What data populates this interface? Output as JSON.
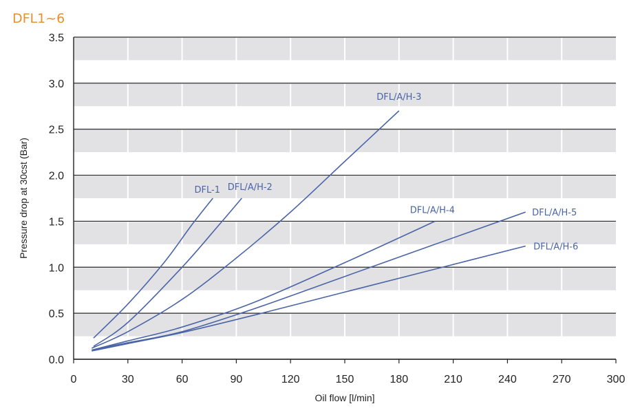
{
  "corner_title": "DFL1~6",
  "chart_data": {
    "type": "line",
    "title": "",
    "xlabel": "Oil flow [l/min]",
    "ylabel": "Pressure drop at 30cst (Bar)",
    "xlim": [
      0,
      300
    ],
    "ylim": [
      0,
      3.5
    ],
    "x_ticks": [
      "0",
      "30",
      "60",
      "90",
      "120",
      "150",
      "180",
      "210",
      "240",
      "270",
      "300"
    ],
    "y_ticks": [
      "0.0",
      "0.5",
      "1.0",
      "1.5",
      "2.0",
      "2.5",
      "3.0",
      "3.5"
    ],
    "grid": "horizontal lines with alternating gray bands",
    "line_color": "#4a64a8",
    "band_color": "#e2e2e4",
    "series": [
      {
        "name": "DFL-1",
        "x": [
          11,
          30,
          50,
          65,
          77
        ],
        "y": [
          0.23,
          0.6,
          1.05,
          1.45,
          1.75
        ]
      },
      {
        "name": "DFL/A/H-2",
        "x": [
          11,
          30,
          60,
          80,
          93
        ],
        "y": [
          0.14,
          0.4,
          1.0,
          1.45,
          1.75
        ]
      },
      {
        "name": "DFL/A/H-3",
        "x": [
          10,
          30,
          60,
          90,
          120,
          150,
          180
        ],
        "y": [
          0.12,
          0.3,
          0.65,
          1.1,
          1.6,
          2.15,
          2.7
        ]
      },
      {
        "name": "DFL/A/H-4",
        "x": [
          10,
          30,
          60,
          100,
          150,
          200
        ],
        "y": [
          0.1,
          0.2,
          0.35,
          0.62,
          1.05,
          1.5
        ]
      },
      {
        "name": "DFL/A/H-5",
        "x": [
          10,
          30,
          60,
          100,
          150,
          200,
          250
        ],
        "y": [
          0.1,
          0.18,
          0.3,
          0.55,
          0.9,
          1.25,
          1.6
        ]
      },
      {
        "name": "DFL/A/H-6",
        "x": [
          10,
          30,
          60,
          100,
          150,
          200,
          250
        ],
        "y": [
          0.09,
          0.17,
          0.29,
          0.48,
          0.73,
          0.98,
          1.23
        ]
      }
    ]
  }
}
